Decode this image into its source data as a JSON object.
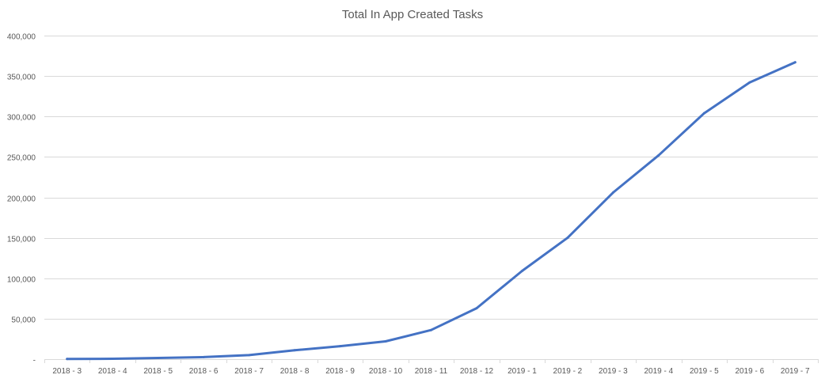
{
  "chart_data": {
    "type": "line",
    "title": "Total In App Created Tasks",
    "xlabel": "",
    "ylabel": "",
    "categories": [
      "2018 - 3",
      "2018 - 4",
      "2018 - 5",
      "2018 - 6",
      "2018 - 7",
      "2018 - 8",
      "2018 - 9",
      "2018 - 10",
      "2018 - 11",
      "2018 - 12",
      "2019 - 1",
      "2019 - 2",
      "2019 - 3",
      "2019 - 4",
      "2019 - 5",
      "2019 - 6",
      "2019 - 7"
    ],
    "series": [
      {
        "values": [
          200,
          500,
          1500,
          2500,
          5000,
          11000,
          16000,
          22000,
          36000,
          63000,
          109000,
          150000,
          206000,
          252000,
          304000,
          342000,
          367000
        ]
      }
    ],
    "ylim": [
      0,
      400000
    ],
    "yticks": [
      {
        "value": 0,
        "label": "-"
      },
      {
        "value": 50000,
        "label": "50,000"
      },
      {
        "value": 100000,
        "label": "100,000"
      },
      {
        "value": 150000,
        "label": "150,000"
      },
      {
        "value": 200000,
        "label": "200,000"
      },
      {
        "value": 250000,
        "label": "250,000"
      },
      {
        "value": 300000,
        "label": "300,000"
      },
      {
        "value": 350000,
        "label": "350,000"
      },
      {
        "value": 400000,
        "label": "400,000"
      }
    ],
    "grid": true,
    "legend": "none",
    "colors": {
      "series": "#4472c4",
      "grid": "#d9d9d9",
      "text": "#595959"
    }
  }
}
